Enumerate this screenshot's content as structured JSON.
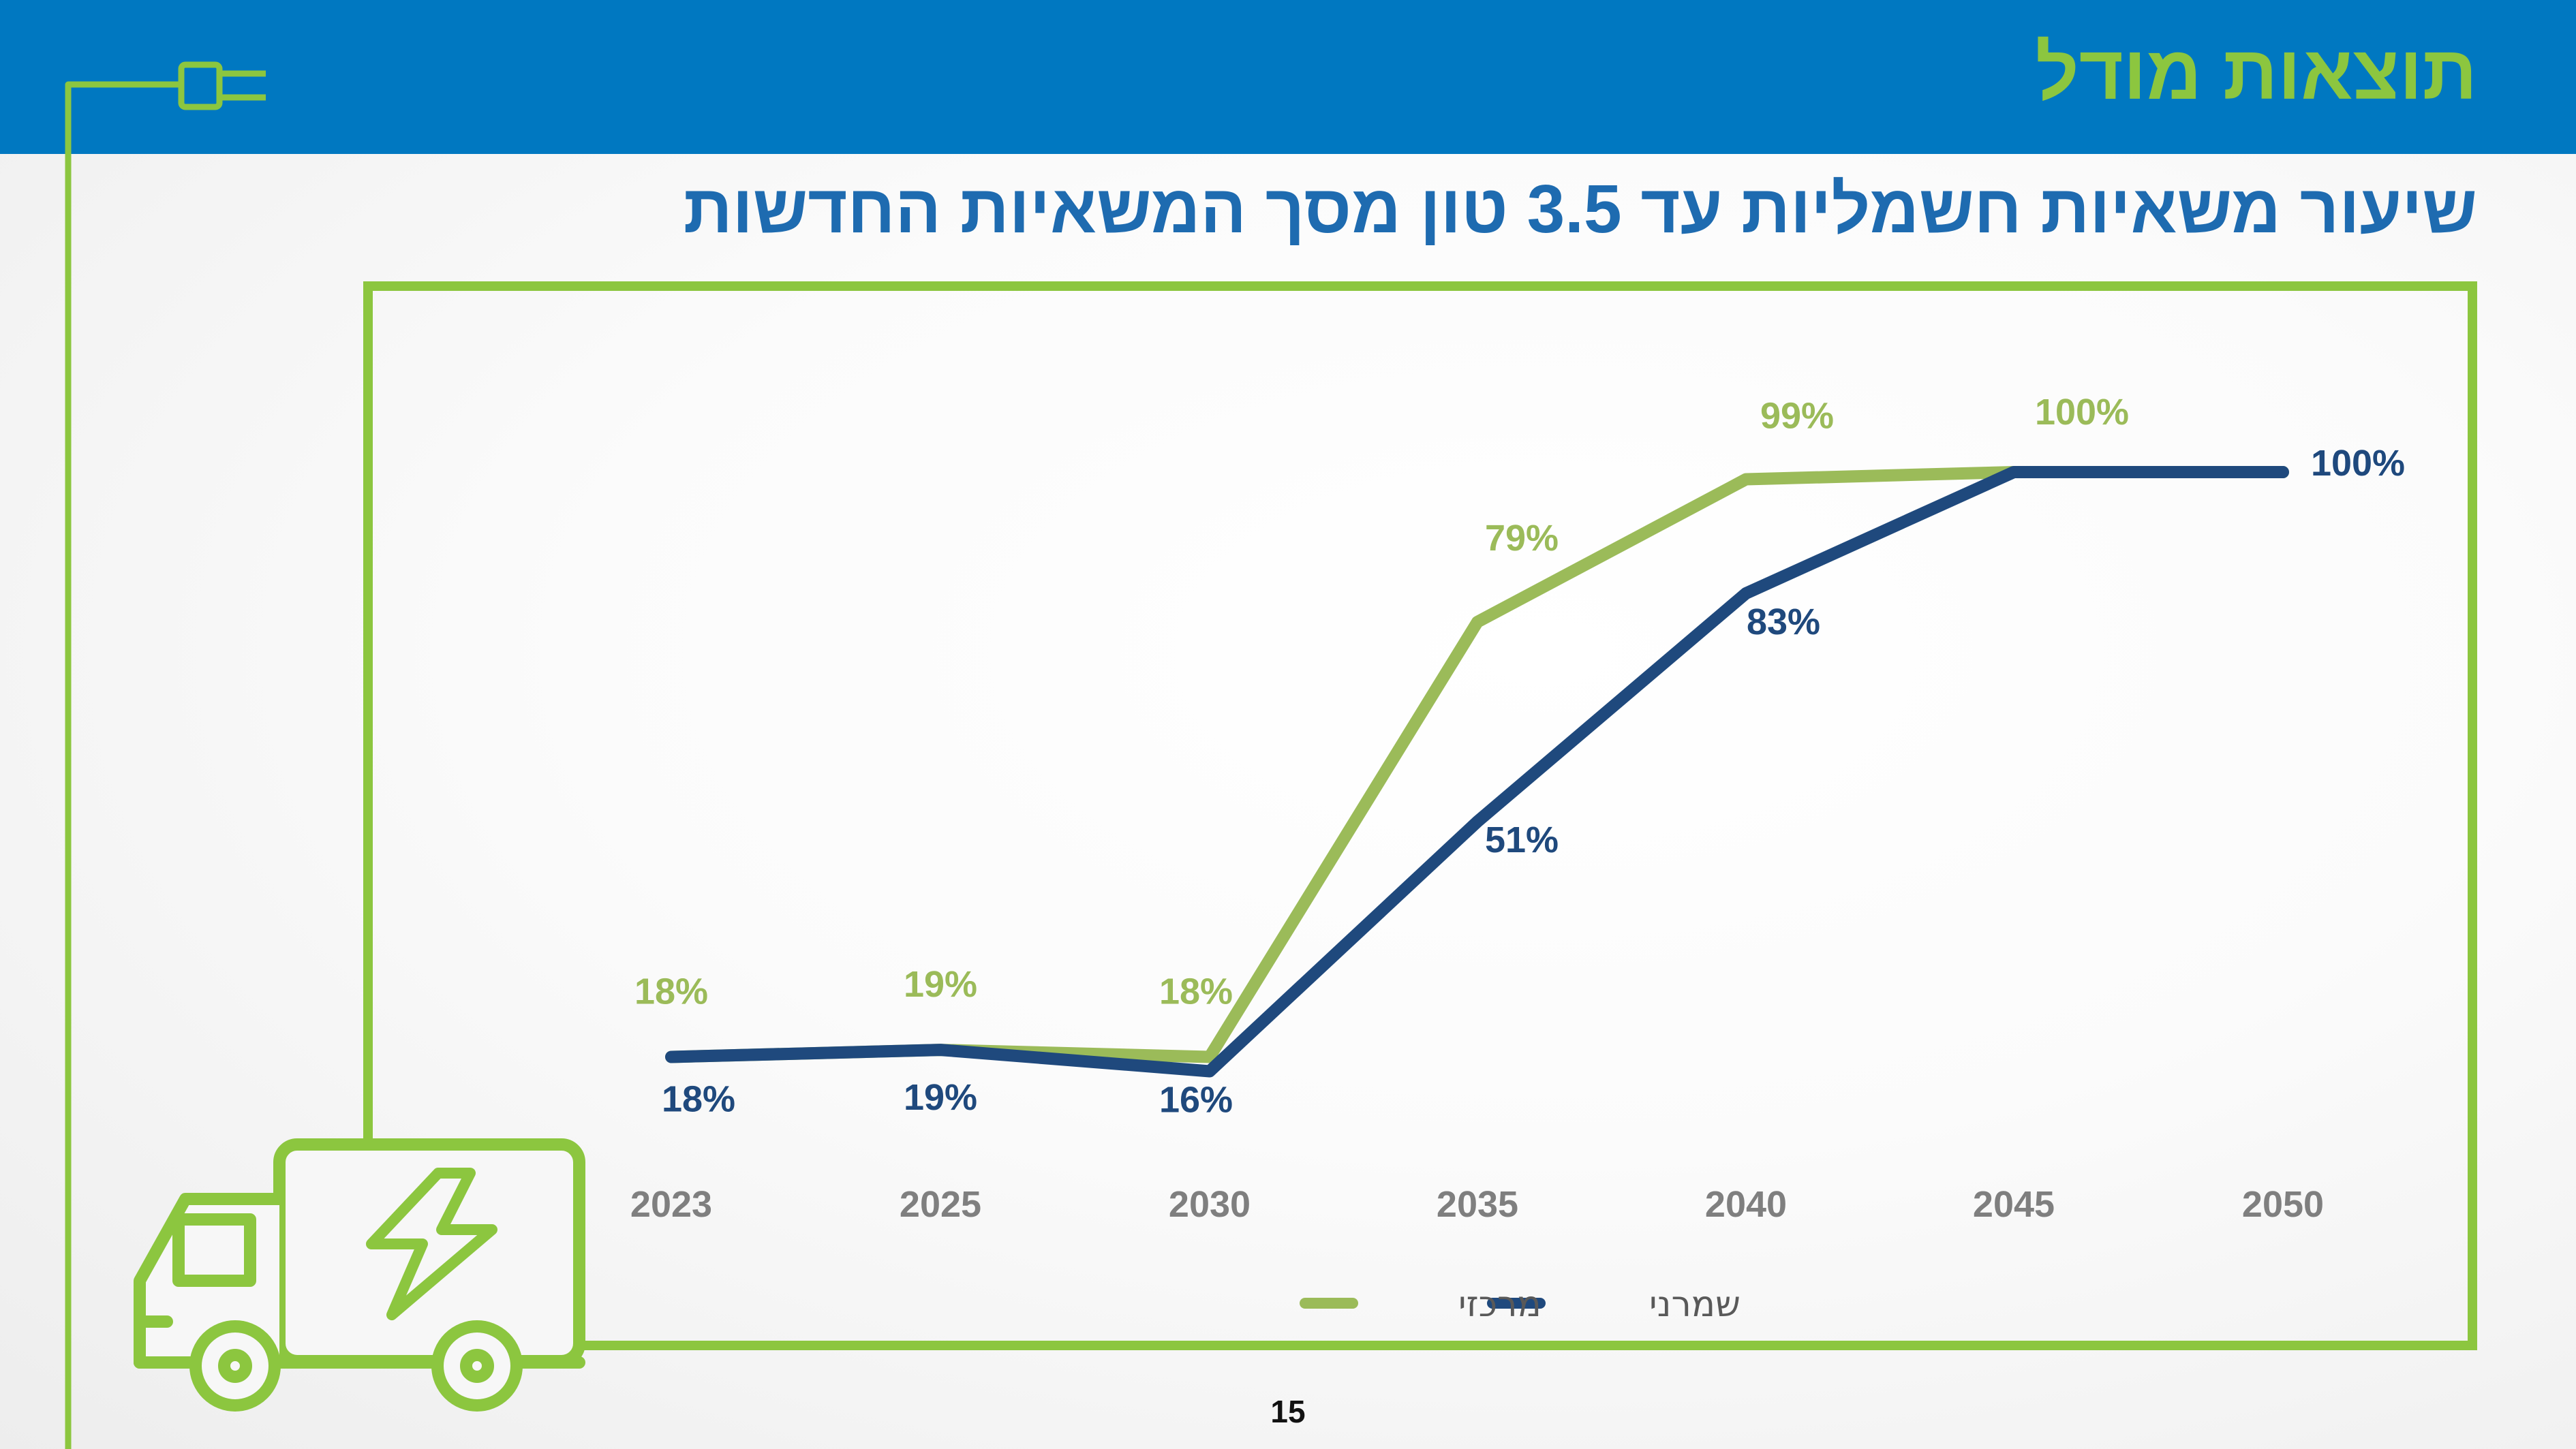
{
  "header": {
    "title": "תוצאות מודל"
  },
  "slide": {
    "subtitle": "שיעור משאיות חשמליות עד 3.5 טון מסך המשאיות החדשות",
    "page_number": "15"
  },
  "colors": {
    "header_bg": "#0078c1",
    "accent_green": "#8cc63f",
    "series_green": "#9bbb59",
    "series_navy": "#1f497d",
    "subtitle_blue": "#1e6bb0"
  },
  "icons": [
    "plug-icon",
    "electric-truck-icon"
  ],
  "chart_data": {
    "type": "line",
    "categories": [
      "2023",
      "2025",
      "2030",
      "2035",
      "2040",
      "2045",
      "2050"
    ],
    "ylim": [
      0,
      100
    ],
    "legend_position": "bottom",
    "grid": false,
    "series": [
      {
        "name": "מרכזי",
        "color": "#9bbb59",
        "values": [
          18,
          19,
          18,
          79,
          99,
          100,
          100
        ],
        "labels": [
          "18%",
          "19%",
          "18%",
          "79%",
          "99%",
          "100%",
          null
        ]
      },
      {
        "name": "שמרני",
        "color": "#1f497d",
        "values": [
          18,
          19,
          16,
          51,
          83,
          100,
          100
        ],
        "labels": [
          "18%",
          "19%",
          "16%",
          "51%",
          "83%",
          null,
          "100%"
        ]
      }
    ]
  }
}
